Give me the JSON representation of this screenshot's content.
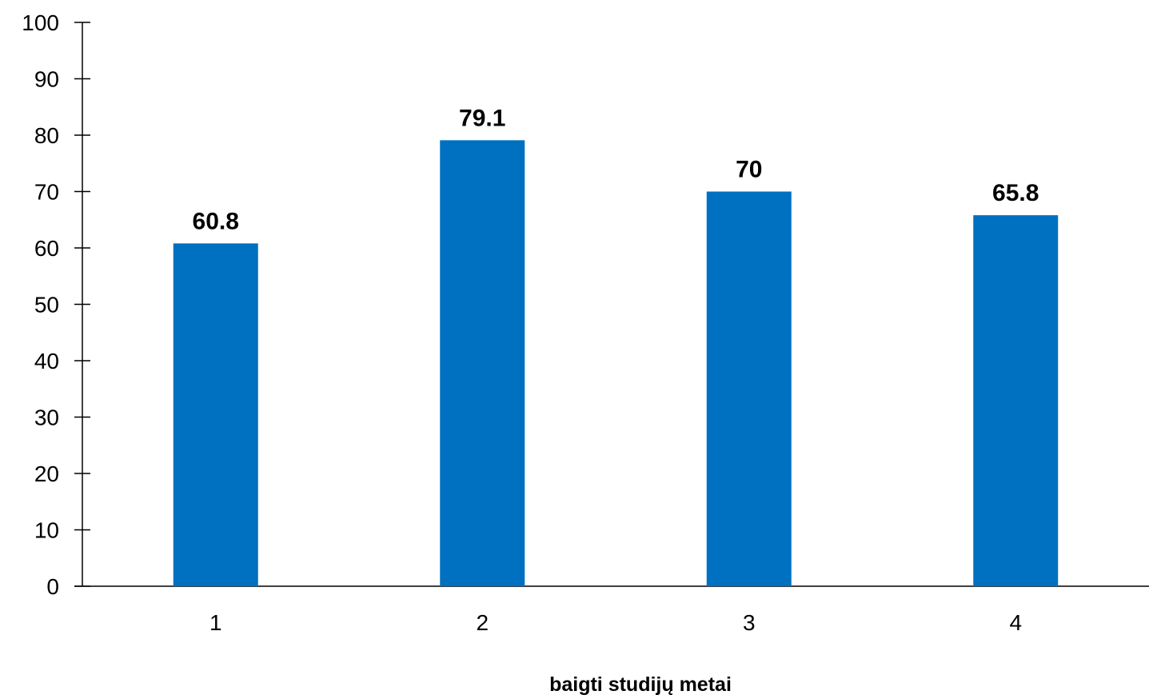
{
  "chart_data": {
    "type": "bar",
    "categories": [
      "1",
      "2",
      "3",
      "4"
    ],
    "values": [
      60.8,
      79.1,
      70,
      65.8
    ],
    "data_labels": [
      "60.8",
      "79.1",
      "70",
      "65.8"
    ],
    "title": "",
    "xlabel": "baigti studijų metai",
    "ylabel": "",
    "ylim": [
      0,
      100
    ],
    "yticks": [
      "0",
      "10",
      "20",
      "30",
      "40",
      "50",
      "60",
      "70",
      "80",
      "90",
      "100"
    ],
    "grid": false,
    "legend": "none",
    "bar_color": "#0070C0"
  }
}
